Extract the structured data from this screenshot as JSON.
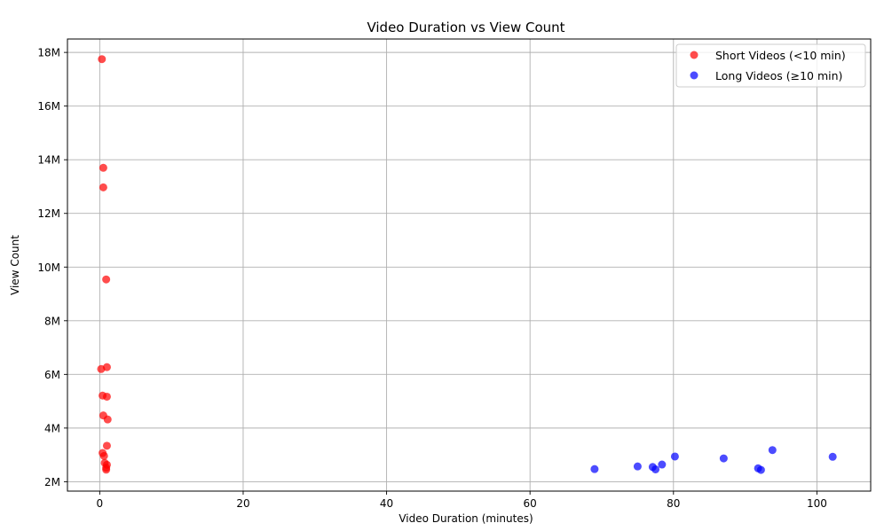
{
  "chart_data": {
    "type": "scatter",
    "title": "Video Duration vs View Count",
    "xlabel": "Video Duration (minutes)",
    "ylabel": "View Count",
    "xlim": [
      -4.5,
      107.5
    ],
    "ylim": [
      1650000,
      18500000
    ],
    "x_ticks": [
      0,
      20,
      40,
      60,
      80,
      100
    ],
    "x_tick_labels": [
      "0",
      "20",
      "40",
      "60",
      "80",
      "100"
    ],
    "y_ticks": [
      2000000,
      4000000,
      6000000,
      8000000,
      10000000,
      12000000,
      14000000,
      16000000,
      18000000
    ],
    "y_tick_labels": [
      "2M",
      "4M",
      "6M",
      "8M",
      "10M",
      "12M",
      "14M",
      "16M",
      "18M"
    ],
    "grid": true,
    "legend_position": "top-right",
    "series": [
      {
        "name": "Short Videos (<10 min)",
        "color": "#ff0000",
        "points": [
          {
            "x": 0.3,
            "y": 17750000
          },
          {
            "x": 0.5,
            "y": 13700000
          },
          {
            "x": 0.5,
            "y": 12970000
          },
          {
            "x": 0.9,
            "y": 9540000
          },
          {
            "x": 0.2,
            "y": 6200000
          },
          {
            "x": 1.0,
            "y": 6270000
          },
          {
            "x": 0.4,
            "y": 5210000
          },
          {
            "x": 1.0,
            "y": 5170000
          },
          {
            "x": 0.5,
            "y": 4470000
          },
          {
            "x": 1.1,
            "y": 4320000
          },
          {
            "x": 1.0,
            "y": 3340000
          },
          {
            "x": 0.4,
            "y": 3070000
          },
          {
            "x": 0.6,
            "y": 2960000
          },
          {
            "x": 0.7,
            "y": 2700000
          },
          {
            "x": 1.0,
            "y": 2630000
          },
          {
            "x": 0.9,
            "y": 2520000
          },
          {
            "x": 0.9,
            "y": 2450000
          }
        ]
      },
      {
        "name": "Long Videos (≥10 min)",
        "color": "#0000ff",
        "points": [
          {
            "x": 69.0,
            "y": 2470000
          },
          {
            "x": 75.0,
            "y": 2570000
          },
          {
            "x": 77.1,
            "y": 2550000
          },
          {
            "x": 77.5,
            "y": 2460000
          },
          {
            "x": 78.4,
            "y": 2640000
          },
          {
            "x": 80.2,
            "y": 2940000
          },
          {
            "x": 87.0,
            "y": 2870000
          },
          {
            "x": 91.8,
            "y": 2500000
          },
          {
            "x": 92.2,
            "y": 2440000
          },
          {
            "x": 93.8,
            "y": 3180000
          },
          {
            "x": 102.2,
            "y": 2930000
          }
        ]
      }
    ]
  }
}
